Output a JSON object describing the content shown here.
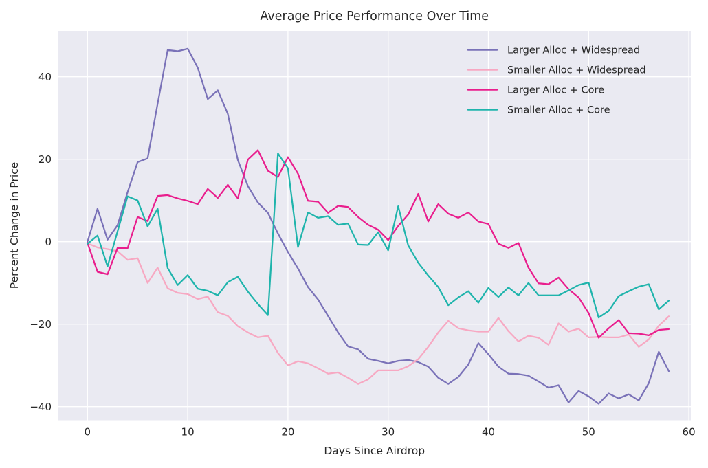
{
  "title": "Average Price Performance Over Time",
  "colors": {
    "figure_background": "#ffffff",
    "axes_background": "#EAEAF2",
    "gridline": "#ffffff",
    "text": "#262626",
    "series_purple": "#7A72B8",
    "series_light_pink": "#F7A8C2",
    "series_magenta": "#E91E8D",
    "series_teal": "#1FB4AC"
  },
  "chart_data": {
    "type": "line",
    "title": "Average Price Performance Over Time",
    "xlabel": "Days Since Airdrop",
    "ylabel": "Percent Change in Price",
    "x_ticks": [
      0,
      10,
      20,
      30,
      40,
      50,
      60
    ],
    "y_ticks": [
      -40,
      -20,
      0,
      20,
      40
    ],
    "xlim": [
      -2.9,
      60.9
    ],
    "ylim": [
      -43.5,
      51.1
    ],
    "grid": true,
    "legend_position": "upper right",
    "x": [
      0,
      1,
      2,
      3,
      4,
      5,
      6,
      7,
      8,
      9,
      10,
      11,
      12,
      13,
      14,
      15,
      16,
      17,
      18,
      19,
      20,
      21,
      22,
      23,
      24,
      25,
      26,
      27,
      28,
      29,
      30,
      31,
      32,
      33,
      34,
      35,
      36,
      37,
      38,
      39,
      40,
      41,
      42,
      43,
      44,
      45,
      46,
      47,
      48,
      49,
      50,
      51,
      52,
      53,
      54,
      55,
      56,
      57,
      58
    ],
    "series": [
      {
        "name": "Larger Alloc + Widespread",
        "color": "#7A72B8",
        "values": [
          0,
          8,
          0.5,
          4,
          12,
          19.3,
          20.2,
          33.5,
          46.5,
          46.2,
          46.8,
          42.2,
          34.6,
          36.7,
          31,
          19.8,
          13.5,
          9.5,
          7,
          2,
          -2.5,
          -6.5,
          -11,
          -14,
          -18,
          -22,
          -25.4,
          -26.1,
          -28.4,
          -28.9,
          -29.5,
          -28.9,
          -28.7,
          -29.2,
          -30.3,
          -33,
          -34.5,
          -32.8,
          -29.8,
          -24.6,
          -27.3,
          -30.3,
          -32,
          -32.1,
          -32.5,
          -33.9,
          -35.4,
          -34.8,
          -39,
          -36.2,
          -37.5,
          -39.3,
          -36.8,
          -38,
          -37,
          -38.5,
          -34.3,
          -26.7,
          -31.4
        ]
      },
      {
        "name": "Smaller Alloc + Widespread",
        "color": "#F7A8C2",
        "values": [
          -0.4,
          -1.4,
          -1.8,
          -2.3,
          -4.4,
          -4,
          -10,
          -6.3,
          -11.3,
          -12.4,
          -12.7,
          -13.9,
          -13.3,
          -17.1,
          -18,
          -20.5,
          -22,
          -23.2,
          -22.8,
          -27,
          -30,
          -29,
          -29.5,
          -30.7,
          -32,
          -31.7,
          -33,
          -34.5,
          -33.4,
          -31.2,
          -31.2,
          -31.2,
          -30.2,
          -28.5,
          -25.5,
          -22,
          -19.2,
          -21,
          -21.5,
          -21.8,
          -21.8,
          -18.5,
          -21.7,
          -24.2,
          -22.8,
          -23.3,
          -25,
          -19.8,
          -21.8,
          -21.1,
          -23.2,
          -23.1,
          -23.2,
          -23.2,
          -22.5,
          -25.5,
          -23.7,
          -20.4,
          -18.1
        ]
      },
      {
        "name": "Larger Alloc + Core",
        "color": "#E91E8D",
        "values": [
          -0.3,
          -7.3,
          -7.9,
          -1.5,
          -1.6,
          6,
          5,
          11.1,
          11.3,
          10.5,
          9.9,
          9.1,
          12.8,
          10.6,
          13.8,
          10.5,
          19.9,
          22.2,
          17.2,
          15.7,
          20.5,
          16.5,
          9.9,
          9.7,
          7,
          8.7,
          8.4,
          6,
          4.1,
          2.9,
          0.4,
          3.8,
          6.6,
          11.6,
          4.9,
          9.1,
          6.8,
          5.8,
          7.1,
          4.9,
          4.3,
          -0.5,
          -1.5,
          -0.3,
          -6.3,
          -10.1,
          -10.3,
          -8.7,
          -11.5,
          -13.5,
          -17.3,
          -23.3,
          -21,
          -19,
          -22.2,
          -22.3,
          -22.7,
          -21.4,
          -21.2
        ]
      },
      {
        "name": "Smaller Alloc + Core",
        "color": "#1FB4AC",
        "values": [
          -0.5,
          1.5,
          -6,
          2.5,
          11,
          10,
          3.7,
          8,
          -6.4,
          -10.5,
          -8.1,
          -11.4,
          -11.9,
          -13,
          -9.8,
          -8.5,
          -12.1,
          -15.1,
          -17.8,
          21.4,
          17.8,
          -1.3,
          7.1,
          5.8,
          6.2,
          4.1,
          4.4,
          -0.7,
          -0.8,
          2.3,
          -2.1,
          8.6,
          -0.9,
          -5.1,
          -8.2,
          -11,
          -15.4,
          -13.5,
          -12,
          -14.8,
          -11.2,
          -13.4,
          -11.1,
          -13,
          -10,
          -13,
          -13,
          -13,
          -11.8,
          -10.5,
          -9.9,
          -18.4,
          -16.8,
          -13.2,
          -12,
          -10.9,
          -10.3,
          -16.4,
          -14.3
        ]
      }
    ]
  }
}
